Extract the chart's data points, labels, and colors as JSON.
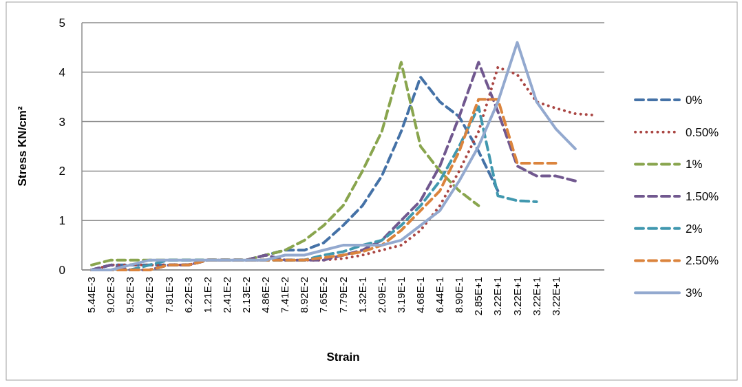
{
  "chart_data": {
    "type": "line",
    "xlabel": "Strain",
    "ylabel": "Stress KN/cm²",
    "categories": [
      "5.44E-3",
      "9.02E-3",
      "9.52E-3",
      "9.42E-3",
      "7.81E-3",
      "6.22E-3",
      "1.21E-2",
      "2.41E-2",
      "2.13E-2",
      "4.86E-2",
      "7.41E-2",
      "8.92E-2",
      "7.65E-2",
      "7.79E-2",
      "1.32E-1",
      "2.09E-1",
      "3.19E-1",
      "4.68E-1",
      "6.44E-1",
      "8.90E-1",
      "2.85E+1",
      "3.22E+1",
      "3.22E+1",
      "3.22E+1",
      "3.22E+1",
      null,
      null
    ],
    "ylim": [
      0,
      5
    ],
    "yticks": [
      0,
      1,
      2,
      3,
      4,
      5
    ],
    "grid": "y",
    "legend": "right",
    "marker": "none",
    "series": [
      {
        "name": "0%",
        "color": "#4572a7",
        "line_style": "dashed",
        "values": [
          0,
          0.1,
          0.1,
          0.1,
          0.1,
          0.1,
          0.2,
          0.2,
          0.2,
          0.3,
          0.4,
          0.4,
          0.55,
          0.9,
          1.3,
          1.9,
          2.8,
          3.9,
          3.4,
          3.1,
          2.4,
          1.6,
          null,
          null,
          null,
          null,
          null
        ]
      },
      {
        "name": "0.50%",
        "color": "#aa4643",
        "line_style": "dotted",
        "values": [
          0,
          0.1,
          0.1,
          0.1,
          0.1,
          0.1,
          0.2,
          0.2,
          0.2,
          0.2,
          0.2,
          0.2,
          0.2,
          0.23,
          0.3,
          0.4,
          0.5,
          0.8,
          1.3,
          2.0,
          2.8,
          4.1,
          3.95,
          3.4,
          3.27,
          3.16,
          3.13
        ]
      },
      {
        "name": "1%",
        "color": "#89a54e",
        "line_style": "dashed",
        "values": [
          0.1,
          0.2,
          0.2,
          0.2,
          0.2,
          0.2,
          0.2,
          0.2,
          0.2,
          0.3,
          0.4,
          0.6,
          0.9,
          1.3,
          2.0,
          2.8,
          4.2,
          2.5,
          2.0,
          1.6,
          1.3,
          null,
          null,
          null,
          null,
          null,
          null
        ]
      },
      {
        "name": "1.50%",
        "color": "#71588f",
        "line_style": "dashed",
        "values": [
          0,
          0.1,
          0,
          0,
          0.1,
          0.1,
          0.2,
          0.2,
          0.2,
          0.3,
          0.2,
          0.2,
          0.2,
          0.3,
          0.4,
          0.6,
          1.0,
          1.4,
          2.1,
          3.1,
          4.2,
          3.2,
          2.1,
          1.9,
          1.9,
          1.8,
          null
        ]
      },
      {
        "name": "2%",
        "color": "#4198af",
        "line_style": "dashed",
        "values": [
          0,
          0,
          0,
          0.1,
          0.2,
          0.2,
          0.2,
          0.2,
          0.2,
          0.2,
          0.2,
          0.2,
          0.3,
          0.37,
          0.5,
          0.6,
          0.9,
          1.3,
          1.8,
          2.5,
          3.3,
          1.5,
          1.4,
          1.38,
          null,
          null,
          null
        ]
      },
      {
        "name": "2.50%",
        "color": "#db843d",
        "line_style": "dashed",
        "values": [
          0,
          0,
          0,
          0,
          0.1,
          0.1,
          0.2,
          0.2,
          0.2,
          0.2,
          0.2,
          0.2,
          0.25,
          0.3,
          0.37,
          0.5,
          0.8,
          1.2,
          1.6,
          2.4,
          3.45,
          3.45,
          2.16,
          2.16,
          2.16,
          null,
          null
        ]
      },
      {
        "name": "3%",
        "color": "#93a9cf",
        "line_style": "solid",
        "values": [
          0,
          0,
          0.1,
          0.2,
          0.2,
          0.2,
          0.2,
          0.2,
          0.2,
          0.2,
          0.3,
          0.3,
          0.4,
          0.5,
          0.5,
          0.5,
          0.6,
          0.9,
          1.2,
          1.8,
          2.5,
          3.4,
          4.6,
          3.4,
          2.85,
          2.45,
          null
        ]
      }
    ]
  }
}
